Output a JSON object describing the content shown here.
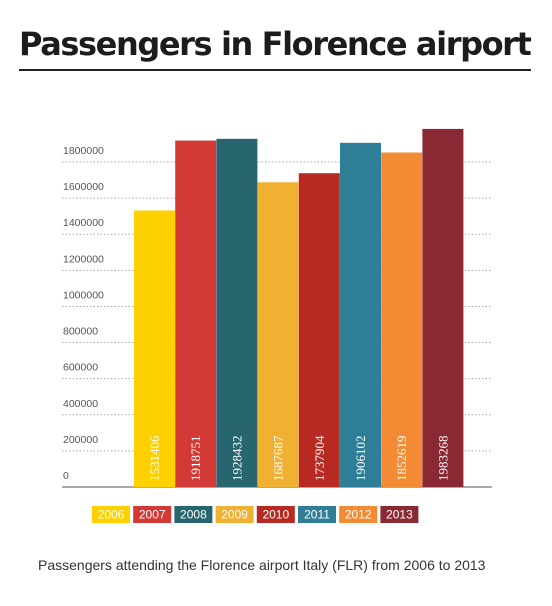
{
  "chart_data": {
    "type": "bar",
    "title": "Passengers in Florence airport",
    "caption": "Passengers attending the Florence airport Italy (FLR) from 2006 to 2013",
    "categories": [
      "2006",
      "2007",
      "2008",
      "2009",
      "2010",
      "2011",
      "2012",
      "2013"
    ],
    "values": [
      1531406,
      1918751,
      1928432,
      1687687,
      1737904,
      1906102,
      1852619,
      1983268
    ],
    "colors": [
      "#fdd100",
      "#d33a35",
      "#27666f",
      "#f0b133",
      "#b82a21",
      "#2f7e98",
      "#f28b33",
      "#8a2933"
    ],
    "yticks": [
      0,
      200000,
      400000,
      600000,
      800000,
      1000000,
      1200000,
      1400000,
      1600000,
      1800000
    ],
    "ylim": [
      0,
      2000000
    ],
    "grid": true,
    "legend": "bottom"
  }
}
